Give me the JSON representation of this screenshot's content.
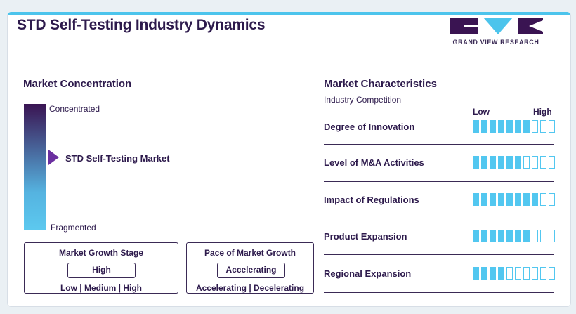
{
  "title": "STD Self-Testing Industry Dynamics",
  "logo": {
    "text": "GRAND VIEW RESEARCH"
  },
  "market_concentration": {
    "heading": "Market Concentration",
    "top_label": "Concentrated",
    "bottom_label": "Fragmented",
    "marker_label": "STD Self-Testing Market"
  },
  "growth_stage": {
    "title": "Market Growth Stage",
    "value": "High",
    "options": "Low | Medium | High"
  },
  "growth_pace": {
    "title": "Pace of Market Growth",
    "value": "Accelerating",
    "options": "Accelerating | Decelerating"
  },
  "market_characteristics": {
    "heading": "Market Characteristics",
    "subheading": "Industry Competition",
    "low_label": "Low",
    "high_label": "High",
    "scale_max": 10,
    "accent_color": "#52c7f0",
    "rows": [
      {
        "label": "Degree of Innovation",
        "level": 7
      },
      {
        "label": "Level of M&A Activities",
        "level": 6
      },
      {
        "label": "Impact of Regulations",
        "level": 8
      },
      {
        "label": "Product Expansion",
        "level": 7
      },
      {
        "label": "Regional Expansion",
        "level": 4
      }
    ]
  }
}
